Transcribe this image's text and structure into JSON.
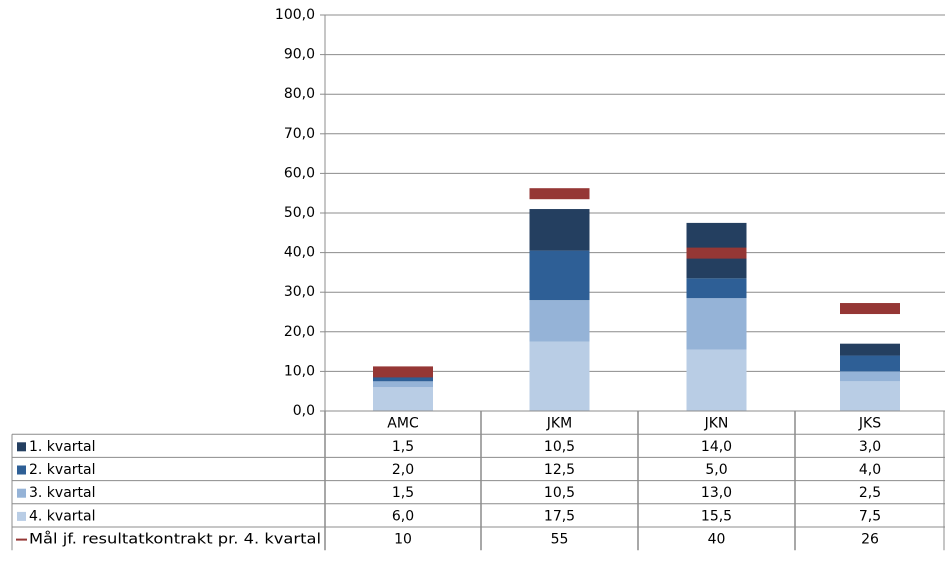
{
  "chart_data": {
    "type": "bar",
    "stacked": true,
    "categories": [
      "AMC",
      "JKM",
      "JKN",
      "JKS"
    ],
    "series": [
      {
        "name": "1. kvartal",
        "color": "#243f60",
        "values": [
          1.5,
          10.5,
          14.0,
          3.0
        ],
        "labels": [
          "1,5",
          "10,5",
          "14,0",
          "3,0"
        ]
      },
      {
        "name": "2. kvartal",
        "color": "#2e5f96",
        "values": [
          2.0,
          12.5,
          5.0,
          4.0
        ],
        "labels": [
          "2,0",
          "12,5",
          "5,0",
          "4,0"
        ]
      },
      {
        "name": "3. kvartal",
        "color": "#95b3d7",
        "values": [
          1.5,
          10.5,
          13.0,
          2.5
        ],
        "labels": [
          "1,5",
          "10,5",
          "13,0",
          "2,5"
        ]
      },
      {
        "name": "4. kvartal",
        "color": "#b9cde5",
        "values": [
          6.0,
          17.5,
          15.5,
          7.5
        ],
        "labels": [
          "6,0",
          "17,5",
          "15,5",
          "7,5"
        ]
      }
    ],
    "target": {
      "name": "Mål jf. resultatkontrakt pr. 4. kvartal",
      "color": "#953735",
      "values": [
        10,
        55,
        40,
        26
      ],
      "labels": [
        "10",
        "55",
        "40",
        "26"
      ]
    },
    "stack_order_bottom_to_top": [
      "4. kvartal",
      "3. kvartal",
      "2. kvartal",
      "1. kvartal"
    ],
    "ylim": [
      0,
      100
    ],
    "yticks": [
      0,
      10,
      20,
      30,
      40,
      50,
      60,
      70,
      80,
      90,
      100
    ],
    "ytick_labels": [
      "0,0",
      "10,0",
      "20,0",
      "30,0",
      "40,0",
      "50,0",
      "60,0",
      "70,0",
      "80,0",
      "90,0",
      "100,0"
    ],
    "grid": true,
    "legend": "data-table-left"
  }
}
